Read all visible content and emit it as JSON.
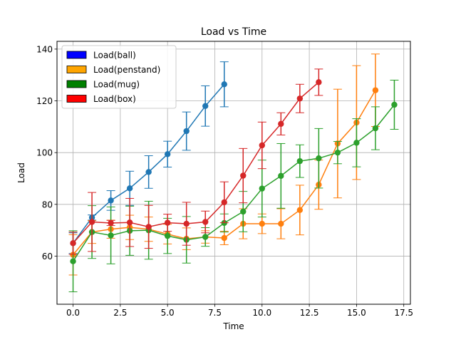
{
  "chart_data": {
    "type": "line",
    "title": "Load vs Time",
    "xlabel": "Time",
    "ylabel": "Load",
    "xlim": [
      -0.85,
      17.85
    ],
    "ylim": [
      41.4,
      143.0
    ],
    "xticks": [
      0.0,
      2.5,
      5.0,
      7.5,
      10.0,
      12.5,
      15.0,
      17.5
    ],
    "xtick_labels": [
      "0.0",
      "2.5",
      "5.0",
      "7.5",
      "10.0",
      "12.5",
      "15.0",
      "17.5"
    ],
    "yticks": [
      60,
      80,
      100,
      120,
      140
    ],
    "ytick_labels": [
      "60",
      "80",
      "100",
      "120",
      "140"
    ],
    "grid": true,
    "legend_placement": "top-left",
    "series": [
      {
        "name": "Load(ball)",
        "line_color": "#1f77b4",
        "legend_color": "#0000ff",
        "x": [
          0,
          1,
          2,
          3,
          4,
          5,
          6,
          7,
          8
        ],
        "y": [
          65.0,
          74.9,
          81.5,
          86.2,
          92.5,
          99.4,
          108.3,
          118.0,
          126.4
        ],
        "err": [
          4.0,
          1.0,
          3.8,
          6.6,
          6.3,
          5.0,
          7.4,
          7.8,
          8.7
        ]
      },
      {
        "name": "Load(penstand)",
        "line_color": "#ff7f0e",
        "legend_color": "#ffa500",
        "x": [
          0,
          1,
          2,
          3,
          4,
          5,
          6,
          7,
          8,
          9,
          10,
          11,
          12,
          13,
          14,
          15,
          16
        ],
        "y": [
          60.5,
          69.3,
          70.4,
          71.1,
          70.4,
          68.5,
          66.7,
          67.4,
          67.0,
          72.5,
          72.5,
          72.5,
          77.8,
          87.6,
          103.5,
          111.6,
          124.1
        ],
        "err": [
          7.8,
          4.4,
          3.5,
          4.7,
          4.7,
          3.8,
          4.2,
          2.4,
          2.6,
          5.8,
          3.8,
          5.8,
          9.6,
          9.5,
          21.0,
          22.0,
          14.0
        ]
      },
      {
        "name": "Load(mug)",
        "line_color": "#2ca02c",
        "legend_color": "#008000",
        "x": [
          0,
          1,
          2,
          3,
          4,
          5,
          6,
          7,
          8,
          9,
          10,
          11,
          12,
          13,
          14,
          15,
          16,
          17
        ],
        "y": [
          58.0,
          69.3,
          68.0,
          69.8,
          70.0,
          67.8,
          66.3,
          67.4,
          72.8,
          77.2,
          86.1,
          91.0,
          96.7,
          97.8,
          100.0,
          103.8,
          109.4,
          118.5
        ],
        "err": [
          11.8,
          10.2,
          11.0,
          9.5,
          11.2,
          6.8,
          9.0,
          3.6,
          3.5,
          7.8,
          11.0,
          12.5,
          6.3,
          11.5,
          4.3,
          9.3,
          8.3,
          9.5
        ]
      },
      {
        "name": "Load(box)",
        "line_color": "#d62728",
        "legend_color": "#ff0000",
        "x": [
          0,
          1,
          2,
          3,
          4,
          5,
          6,
          7,
          8,
          9,
          10,
          11,
          12,
          13
        ],
        "y": [
          65.0,
          73.2,
          72.8,
          73.0,
          71.3,
          72.9,
          72.5,
          73.2,
          80.8,
          91.1,
          102.8,
          111.1,
          120.9,
          127.2
        ],
        "err": [
          4.3,
          11.4,
          1.0,
          9.3,
          8.3,
          3.3,
          8.3,
          4.2,
          7.9,
          10.5,
          9.0,
          4.3,
          5.5,
          5.1
        ]
      }
    ]
  }
}
